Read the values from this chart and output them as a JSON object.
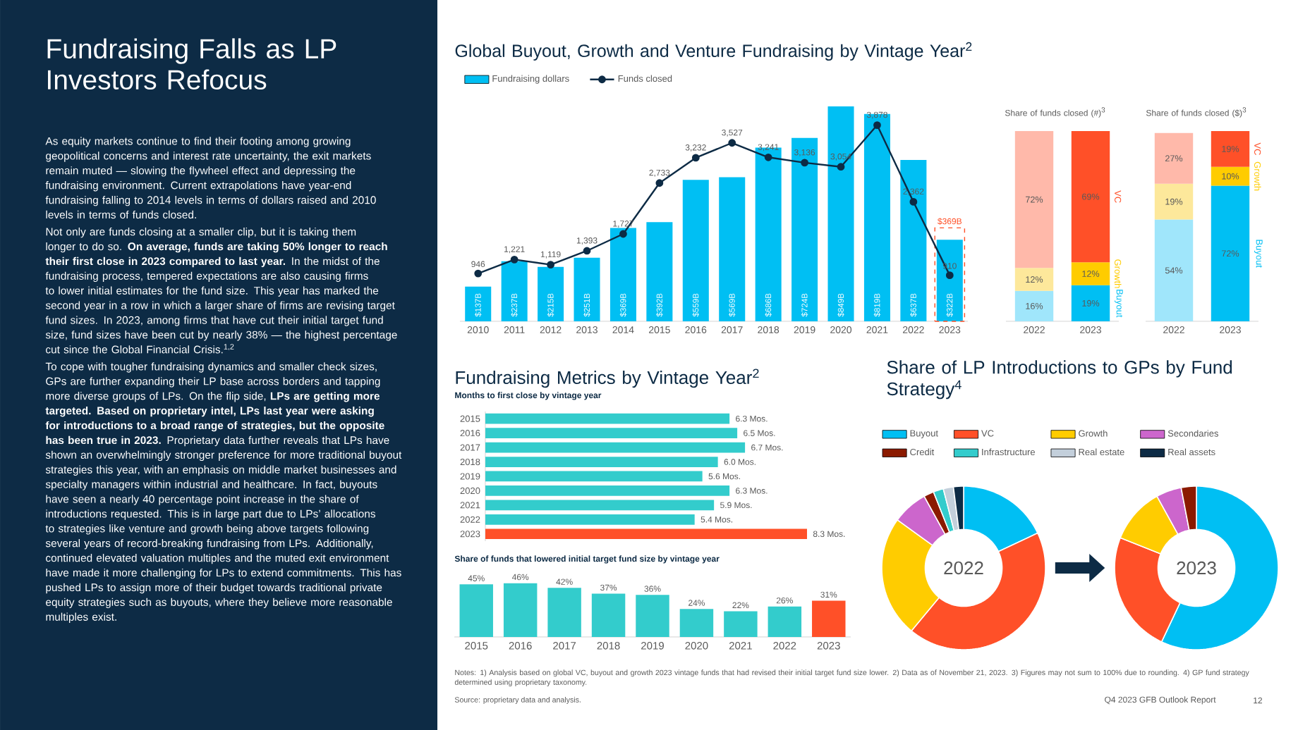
{
  "chart_data": [
    {
      "type": "other",
      "title": "Fundraising Falls as LP Investors Refocus",
      "annotations": [
        "As equity markets continue to find their footing among growing geopolitical concerns and interest rate uncertainty, the exit markets remain muted — slowing the flywheel effect and depressing the fundraising environment. Current extrapolations have year-end fundraising falling to 2014 levels in terms of dollars raised and 2010 levels in terms of funds closed.",
        "Not only are funds closing at a smaller clip, but it is taking them longer to do so. **On average, funds are taking 50% longer to reach their first close in 2023 compared to last year.** In the midst of the fundraising process, tempered expectations are also causing firms to lower initial estimates for the fund size. This year has marked the second year in a row in which a larger share of firms are revising target fund sizes. In 2023, among firms that have cut their initial target fund size, fund sizes have been cut by nearly 38% — the highest percentage cut since the Global Financial Crisis.$^{1,2}$",
        "To cope with tougher fundraising dynamics and smaller check sizes, GPs are further expanding their LP base across borders and tapping more diverse groups of LPs. On the flip side, **LPs are getting more targeted. Based on proprietary intel, LPs last year were asking for introductions to a broad range of strategies, but the opposite has been true in 2023.** Proprietary data further reveals that LPs have shown an overwhelmingly stronger preference for more traditional buyout strategies this year, with an emphasis on middle market businesses and specialty managers within industrial and healthcare. In fact, buyouts have seen a nearly 40 percentage point increase in the share of introductions requested. This is in large part due to LPs’ allocations to strategies like venture and growth being above targets following several years of record-breaking fundraising from LPs. Additionally, continued elevated valuation multiples and the muted exit environment have made it more challenging for LPs to extend commitments. This has pushed LPs to assign more of their budget towards traditional private equity strategies such as buyouts, where they believe more reasonable multiples exist.",
        "Notes: 1) Analysis based on global VC, buyout and growth 2023 vintage funds that had revised their initial target fund size lower. 2) Data as of November 21, 2023. 3) Figures may not sum to 100% due to rounding. 4) GP fund strategy determined using proprietary taxonomy.",
        "Source: proprietary data and analysis.",
        "Q4 2023 GFB Outlook Report",
        "12"
      ]
    },
    {
      "type": "bar",
      "title": "Global Buyout, Growth and Venture Fundraising by Vintage Year$^{2}$",
      "categories": [
        "2010",
        "2011",
        "2012",
        "2013",
        "2014",
        "2015",
        "2016",
        "2017",
        "2018",
        "2019",
        "2020",
        "2021",
        "2022",
        "2023"
      ],
      "series": [
        {
          "name": "Fundraising dollars",
          "color": "#00bff3",
          "values": [
            137,
            237,
            215,
            251,
            369,
            392,
            559,
            569,
            686,
            724,
            849,
            819,
            637,
            322
          ],
          "value_labels": [
            "$137B",
            "$237B",
            "$215B",
            "$251B",
            "$369B",
            "$392B",
            "$559B",
            "$569B",
            "$686B",
            "$724B",
            "$849B",
            "$819B",
            "$637B",
            "$322B"
          ]
        },
        {
          "color": "#ff5028",
          "line_style": "dashed",
          "values": [
            null,
            null,
            null,
            null,
            null,
            null,
            null,
            null,
            null,
            null,
            null,
            null,
            null,
            369
          ],
          "value_labels": [
            null,
            null,
            null,
            null,
            null,
            null,
            null,
            null,
            null,
            null,
            null,
            null,
            null,
            "$369B"
          ]
        },
        {
          "name": "Funds closed",
          "type": "line",
          "axis": "y2",
          "color": "#0d2b45",
          "values": [
            946,
            1221,
            1119,
            1393,
            1727,
            2733,
            3232,
            3527,
            3241,
            3136,
            3054,
            3878,
            2362,
            910
          ],
          "value_labels": [
            "946",
            "1,221",
            "1,119",
            "1,393",
            "1,727",
            "2,733",
            "3,232",
            "3,527",
            "3,241",
            "3,136",
            "3,054",
            "3,878",
            "2,362",
            "910"
          ]
        }
      ],
      "tick_labels": "x",
      "marker": "circle",
      "legend": "top left"
    },
    {
      "type": "bar",
      "stacked": true,
      "title": "Share of funds closed (#)$^{3}$",
      "categories": [
        "2022",
        "2023"
      ],
      "series": [
        {
          "name": "Buyout",
          "colors": [
            "#a0e6fb",
            "#00bff3"
          ],
          "values": [
            16,
            19
          ],
          "value_labels": [
            "16%",
            "19%"
          ]
        },
        {
          "name": "Growth",
          "colors": [
            "#fde89b",
            "#ffcc00"
          ],
          "values": [
            12,
            12
          ],
          "value_labels": [
            "12%",
            "12%"
          ]
        },
        {
          "name": "VC",
          "colors": [
            "#ffb9aa",
            "#ff5028"
          ],
          "values": [
            72,
            69
          ],
          "value_labels": [
            "72%",
            "69%"
          ]
        }
      ],
      "tick_labels": "x"
    },
    {
      "type": "bar",
      "stacked": true,
      "title": "Share of funds closed ($)$^{3}$",
      "categories": [
        "2022",
        "2023"
      ],
      "series": [
        {
          "name": "Buyout",
          "colors": [
            "#a0e6fb",
            "#00bff3"
          ],
          "values": [
            54,
            72
          ],
          "value_labels": [
            "54%",
            "72%"
          ]
        },
        {
          "name": "Growth",
          "colors": [
            "#fde89b",
            "#ffcc00"
          ],
          "values": [
            19,
            10
          ],
          "value_labels": [
            "19%",
            "10%"
          ]
        },
        {
          "name": "VC",
          "colors": [
            "#ffb9aa",
            "#ff5028"
          ],
          "values": [
            27,
            19
          ],
          "value_labels": [
            "27%",
            "19%"
          ]
        }
      ],
      "tick_labels": "x"
    },
    {
      "type": "bar",
      "orientation": "horizontal",
      "title": "Fundraising Metrics by Vintage Year$^{2}$",
      "subtitle": "Months to first close by vintage year",
      "categories": [
        "2015",
        "2016",
        "2017",
        "2018",
        "2019",
        "2020",
        "2021",
        "2022",
        "2023"
      ],
      "values": [
        6.3,
        6.5,
        6.7,
        6.0,
        5.6,
        6.3,
        5.9,
        5.4,
        8.3
      ],
      "value_labels": [
        "6.3 Mos.",
        "6.5 Mos.",
        "6.7 Mos.",
        "6.0 Mos.",
        "5.6 Mos.",
        "6.3 Mos.",
        "5.9 Mos.",
        "5.4 Mos.",
        "8.3 Mos."
      ],
      "colors": [
        "#33cccc",
        "#33cccc",
        "#33cccc",
        "#33cccc",
        "#33cccc",
        "#33cccc",
        "#33cccc",
        "#33cccc",
        "#ff5028"
      ],
      "xlim": [
        0,
        8.3
      ],
      "tick_labels": "y"
    },
    {
      "type": "bar",
      "subtitle": "Share of funds that lowered initial target fund size by vintage year",
      "categories": [
        "2015",
        "2016",
        "2017",
        "2018",
        "2019",
        "2020",
        "2021",
        "2022",
        "2023"
      ],
      "values": [
        45,
        46,
        42,
        37,
        36,
        24,
        22,
        26,
        31
      ],
      "value_labels": [
        "45%",
        "46%",
        "42%",
        "37%",
        "36%",
        "24%",
        "22%",
        "26%",
        "31%"
      ],
      "colors": [
        "#33cccc",
        "#33cccc",
        "#33cccc",
        "#33cccc",
        "#33cccc",
        "#33cccc",
        "#33cccc",
        "#33cccc",
        "#ff5028"
      ],
      "ylim": [
        0,
        47
      ],
      "tick_labels": "x"
    },
    {
      "type": "donut",
      "title": "Share of LP Introductions to GPs by Fund Strategy$^{4}$",
      "categories": [
        "Buyout",
        "VC",
        "Growth",
        "Secondaries",
        "Credit",
        "Infrastructure",
        "Real estate",
        "Real assets"
      ],
      "colors": [
        "#00bff3",
        "#ff5028",
        "#ffcc00",
        "#cc66cc",
        "#8b1a00",
        "#33cccc",
        "#c3cfdb",
        "#0d2b45"
      ],
      "series": [
        {
          "name": "2022",
          "values": [
            18,
            43,
            24,
            7,
            2,
            2,
            2,
            2
          ]
        },
        {
          "name": "2023",
          "values": [
            57,
            24,
            11,
            5,
            3,
            0,
            0,
            0
          ]
        }
      ],
      "legend": "top"
    }
  ]
}
